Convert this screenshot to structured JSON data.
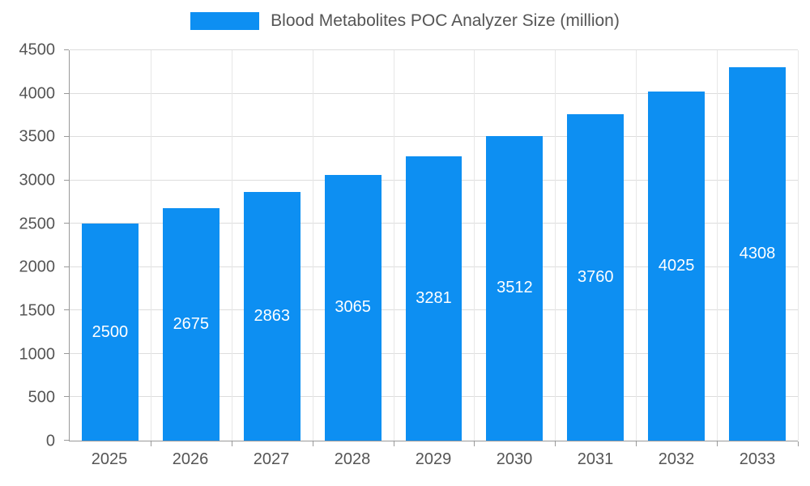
{
  "chart_data": {
    "type": "bar",
    "title": "Blood Metabolites POC Analyzer Size (million)",
    "categories": [
      "2025",
      "2026",
      "2027",
      "2028",
      "2029",
      "2030",
      "2031",
      "2032",
      "2033"
    ],
    "values": [
      2500,
      2675,
      2863,
      3065,
      3281,
      3512,
      3760,
      4025,
      4308
    ],
    "xlabel": "",
    "ylabel": "",
    "ylim": [
      0,
      4500
    ],
    "yticks": [
      0,
      500,
      1000,
      1500,
      2000,
      2500,
      3000,
      3500,
      4000,
      4500
    ],
    "grid": true,
    "legend_position": "top",
    "bar_color": "#0d8ff2",
    "value_label_color": "#ffffff",
    "axis_text_color": "#555555"
  }
}
